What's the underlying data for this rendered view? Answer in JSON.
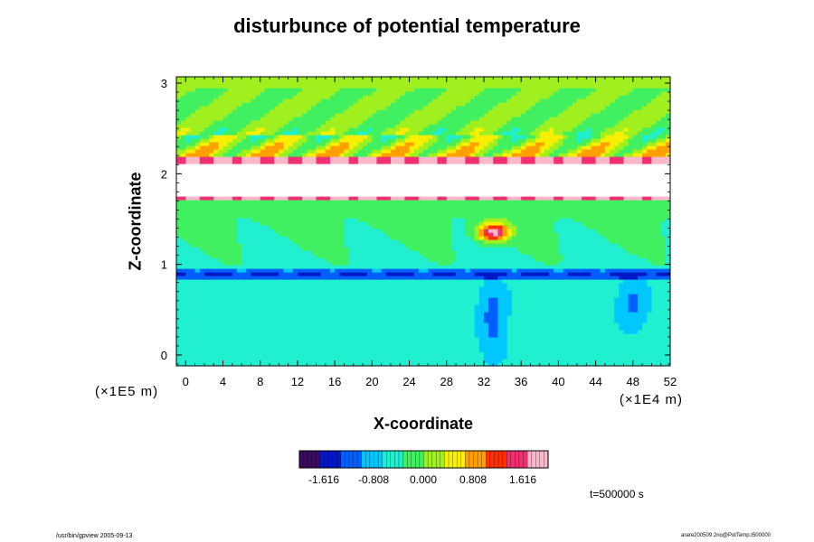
{
  "chart_data": {
    "type": "heatmap",
    "title": "disturbunce of potential temperature",
    "xlabel": "X-coordinate",
    "ylabel": "Z-coordinate",
    "x_unit": "(×1E4 m)",
    "z_unit": "(×1E5 m)",
    "xlim": [
      -1,
      52
    ],
    "ylim": [
      -0.12,
      3.07
    ],
    "x_ticks": [
      "0",
      "4",
      "8",
      "12",
      "16",
      "20",
      "24",
      "28",
      "32",
      "36",
      "40",
      "44",
      "48",
      "52"
    ],
    "y_ticks": [
      "0",
      "1",
      "2",
      "3"
    ],
    "colorbar": {
      "ticks": [
        "-1.616",
        "-0.808",
        "0.000",
        "0.808",
        "1.616"
      ],
      "range": [
        -2.2,
        2.2
      ]
    },
    "time_label": "t=500000 s",
    "features": [
      {
        "region": "upper layer",
        "z_range": [
          2.2,
          3.0
        ],
        "value": "waves, mostly near 0"
      },
      {
        "region": "saturated band",
        "z_range": [
          1.75,
          2.15
        ],
        "value": "> 2.2 (white)"
      },
      {
        "region": "middle layer",
        "z_range": [
          1.0,
          1.7
        ],
        "value": "slightly negative"
      },
      {
        "region": "cold band",
        "z_range": [
          0.85,
          0.95
        ],
        "value": "about -1.6"
      },
      {
        "region": "warm plume",
        "x": 33,
        "z": 1.35,
        "value": "about 1.6 to 2.0"
      },
      {
        "region": "lower layer",
        "z_range": [
          0,
          0.8
        ],
        "value": "about -0.6"
      }
    ]
  },
  "footer": {
    "left": "/usr/bin/gpview 2005-09-13",
    "right": "arare200509 2no@PotTemp.t500000"
  },
  "colors": {
    "palette": [
      "#3a0a5e",
      "#0018c8",
      "#0060ff",
      "#00c8ff",
      "#20f0d0",
      "#40f060",
      "#a0f020",
      "#f8f000",
      "#ffa000",
      "#ff3000",
      "#f03070",
      "#f8b8c8"
    ]
  }
}
